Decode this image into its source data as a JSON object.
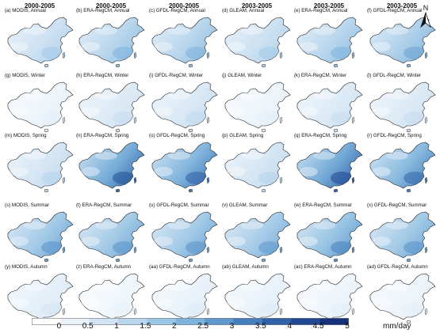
{
  "columns": [
    {
      "period": "2000-2005"
    },
    {
      "period": "2000-2005"
    },
    {
      "period": "2000-2005"
    },
    {
      "period": "2003-2005"
    },
    {
      "period": "2003-2005"
    },
    {
      "period": "2003-2005"
    }
  ],
  "panels": [
    {
      "label": "(a) MODIS, Annual",
      "intensity": 0.3
    },
    {
      "label": "(b) ERA-RegCM, Annual",
      "intensity": 0.4
    },
    {
      "label": "(c) GFDL-RegCM, Annual",
      "intensity": 0.4
    },
    {
      "label": "(d) GLEAM, Annual",
      "intensity": 0.3
    },
    {
      "label": "(e) ERA-RegCM, Annual",
      "intensity": 0.4
    },
    {
      "label": "(f) GFDL-RegCM, Annual",
      "intensity": 0.45
    },
    {
      "label": "(g) MODIS, Winter",
      "intensity": 0.1
    },
    {
      "label": "(h) ERA-RegCM, Winter",
      "intensity": 0.2
    },
    {
      "label": "(i) GFDL-RegCM, Winter",
      "intensity": 0.22
    },
    {
      "label": "(j) GLEAM, Winter",
      "intensity": 0.1
    },
    {
      "label": "(k) ERA-RegCM, Winter",
      "intensity": 0.2
    },
    {
      "label": "(l) GFDL-RegCM, Winter",
      "intensity": 0.2
    },
    {
      "label": "(m) MODIS, Spring",
      "intensity": 0.25
    },
    {
      "label": "(n) ERA-RegCM, Spring",
      "intensity": 0.7
    },
    {
      "label": "(o) GFDL-RegCM, Spring",
      "intensity": 0.65
    },
    {
      "label": "(p) GLEAM, Spring",
      "intensity": 0.25
    },
    {
      "label": "(q) ERA-RegCM, Spring",
      "intensity": 0.72
    },
    {
      "label": "(r) GFDL-RegCM, Spring",
      "intensity": 0.62
    },
    {
      "label": "(s) MODIS, Summar",
      "intensity": 0.5
    },
    {
      "label": "(t) ERA-RegCM, Summar",
      "intensity": 0.5
    },
    {
      "label": "(u) GFDL-RegCM, Summar",
      "intensity": 0.5
    },
    {
      "label": "(v) GLEAM, Summar",
      "intensity": 0.48
    },
    {
      "label": "(w) ERA-RegCM, Summar",
      "intensity": 0.55
    },
    {
      "label": "(x) GFDL-RegCM, Summar",
      "intensity": 0.5
    },
    {
      "label": "(y) MODIS, Autumn",
      "intensity": 0.15
    },
    {
      "label": "(z) ERA-RegCM, Autumn",
      "intensity": 0.08
    },
    {
      "label": "(aa) GFDL-RegCM, Autumn",
      "intensity": 0.12
    },
    {
      "label": "(ab) GLEAM, Autumn",
      "intensity": 0.12
    },
    {
      "label": "(ac) ERA-RegCM, Autumn",
      "intensity": 0.1
    },
    {
      "label": "(ad) GFDL-RegCM, Autumn",
      "intensity": 0.1
    }
  ],
  "north_arrow": {
    "label": "N"
  },
  "colorbar": {
    "ticks": [
      "0",
      "0.5",
      "1",
      "1.5",
      "2",
      "2.5",
      "3",
      "3.5",
      "4",
      "4.5",
      "5"
    ],
    "units": "mm/day",
    "colors": [
      "#ffffff",
      "#e8f1f9",
      "#d2e4f3",
      "#b9d6ed",
      "#9cc6e5",
      "#7fb3dc",
      "#6099cd",
      "#447ebc",
      "#3062a8",
      "#214892",
      "#15317a"
    ]
  }
}
